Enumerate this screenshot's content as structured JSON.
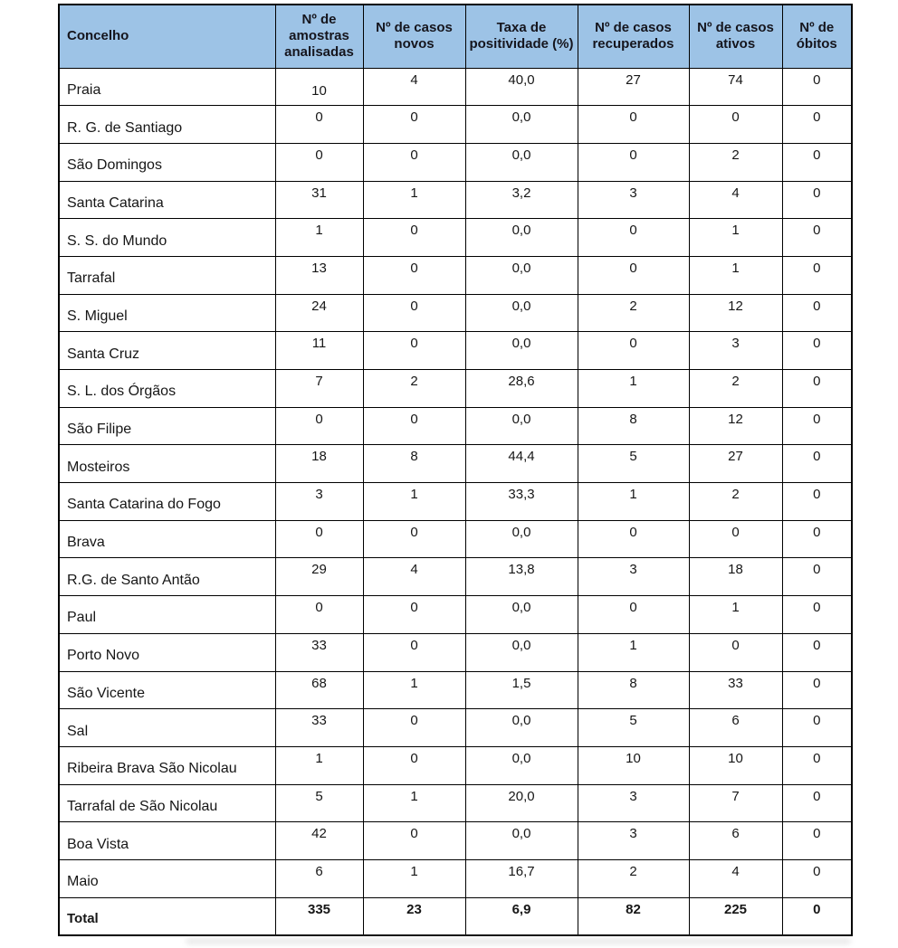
{
  "colors": {
    "header_bg": "#9DC3E6",
    "border": "#000000",
    "header_text": "#15151d",
    "body_text": "#161616"
  },
  "table": {
    "columns": [
      {
        "label": "Concelho"
      },
      {
        "label": "Nº de amostras analisadas"
      },
      {
        "label": "Nº de casos novos"
      },
      {
        "label": "Taxa de positividade (%)"
      },
      {
        "label": "Nº de casos recuperados"
      },
      {
        "label": "Nº de casos ativos"
      },
      {
        "label": "Nº de óbitos"
      }
    ],
    "rows": [
      {
        "concelho": "Praia",
        "values": [
          "10",
          "4",
          "40,0",
          "27",
          "74",
          "0"
        ]
      },
      {
        "concelho": "R. G. de Santiago",
        "values": [
          "0",
          "0",
          "0,0",
          "0",
          "0",
          "0"
        ]
      },
      {
        "concelho": "São Domingos",
        "values": [
          "0",
          "0",
          "0,0",
          "0",
          "2",
          "0"
        ]
      },
      {
        "concelho": "Santa Catarina",
        "values": [
          "31",
          "1",
          "3,2",
          "3",
          "4",
          "0"
        ]
      },
      {
        "concelho": "S. S. do Mundo",
        "values": [
          "1",
          "0",
          "0,0",
          "0",
          "1",
          "0"
        ]
      },
      {
        "concelho": "Tarrafal",
        "values": [
          "13",
          "0",
          "0,0",
          "0",
          "1",
          "0"
        ]
      },
      {
        "concelho": "S. Miguel",
        "values": [
          "24",
          "0",
          "0,0",
          "2",
          "12",
          "0"
        ]
      },
      {
        "concelho": "Santa Cruz",
        "values": [
          "11",
          "0",
          "0,0",
          "0",
          "3",
          "0"
        ]
      },
      {
        "concelho": "S. L. dos Órgãos",
        "values": [
          "7",
          "2",
          "28,6",
          "1",
          "2",
          "0"
        ]
      },
      {
        "concelho": "São Filipe",
        "values": [
          "0",
          "0",
          "0,0",
          "8",
          "12",
          "0"
        ]
      },
      {
        "concelho": "Mosteiros",
        "values": [
          "18",
          "8",
          "44,4",
          "5",
          "27",
          "0"
        ]
      },
      {
        "concelho": "Santa Catarina do Fogo",
        "values": [
          "3",
          "1",
          "33,3",
          "1",
          "2",
          "0"
        ]
      },
      {
        "concelho": "Brava",
        "values": [
          "0",
          "0",
          "0,0",
          "0",
          "0",
          "0"
        ]
      },
      {
        "concelho": "R.G. de Santo Antão",
        "values": [
          "29",
          "4",
          "13,8",
          "3",
          "18",
          "0"
        ]
      },
      {
        "concelho": "Paul",
        "values": [
          "0",
          "0",
          "0,0",
          "0",
          "1",
          "0"
        ]
      },
      {
        "concelho": "Porto Novo",
        "values": [
          "33",
          "0",
          "0,0",
          "1",
          "0",
          "0"
        ]
      },
      {
        "concelho": "São Vicente",
        "values": [
          "68",
          "1",
          "1,5",
          "8",
          "33",
          "0"
        ]
      },
      {
        "concelho": "Sal",
        "values": [
          "33",
          "0",
          "0,0",
          "5",
          "6",
          "0"
        ]
      },
      {
        "concelho": "Ribeira Brava São Nicolau",
        "values": [
          "1",
          "0",
          "0,0",
          "10",
          "10",
          "0"
        ]
      },
      {
        "concelho": "Tarrafal de São Nicolau",
        "values": [
          "5",
          "1",
          "20,0",
          "3",
          "7",
          "0"
        ]
      },
      {
        "concelho": "Boa Vista",
        "values": [
          "42",
          "0",
          "0,0",
          "3",
          "6",
          "0"
        ]
      },
      {
        "concelho": "Maio",
        "values": [
          "6",
          "1",
          "16,7",
          "2",
          "4",
          "0"
        ]
      }
    ],
    "total_row": {
      "label": "Total",
      "values": [
        "335",
        "23",
        "6,9",
        "82",
        "225",
        "0"
      ]
    }
  }
}
